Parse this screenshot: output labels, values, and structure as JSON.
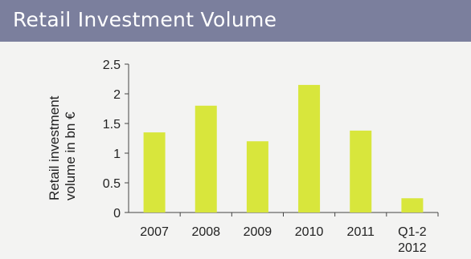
{
  "chart_data": {
    "type": "bar",
    "title": "Retail Investment Volume",
    "ylabel_line1": "Retail investment",
    "ylabel_line2": "volume in bn €",
    "categories": [
      {
        "line1": "2007",
        "line2": ""
      },
      {
        "line1": "2008",
        "line2": ""
      },
      {
        "line1": "2009",
        "line2": ""
      },
      {
        "line1": "2010",
        "line2": ""
      },
      {
        "line1": "2011",
        "line2": ""
      },
      {
        "line1": "Q1-2",
        "line2": "2012"
      }
    ],
    "values": [
      1.35,
      1.8,
      1.2,
      2.15,
      1.38,
      0.24
    ],
    "yticks": [
      "0",
      "0.5",
      "1",
      "1.5",
      "2",
      "2.5"
    ],
    "ylim": [
      0,
      2.5
    ],
    "grid": false,
    "bar_color": "#d8e63c"
  }
}
